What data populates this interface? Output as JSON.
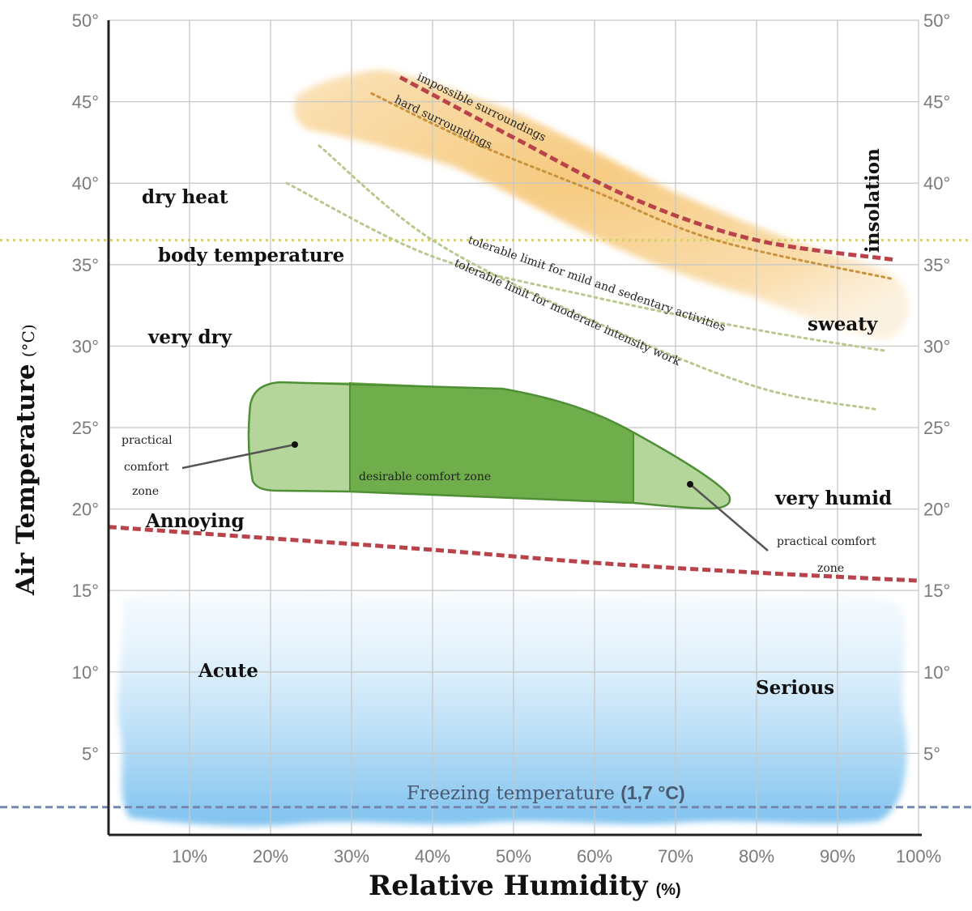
{
  "chart_data": {
    "type": "area",
    "title": "",
    "xlabel": "Relative Humidity",
    "xlabel_unit": "(%)",
    "ylabel": "Air Temperature (°C)",
    "xlim": [
      0,
      100
    ],
    "ylim": [
      0,
      50
    ],
    "x_ticks": [
      10,
      20,
      30,
      40,
      50,
      60,
      70,
      80,
      90,
      100
    ],
    "x_tick_labels": [
      "10%",
      "20%",
      "30%",
      "40%",
      "50%",
      "60%",
      "70%",
      "80%",
      "90%",
      "100%"
    ],
    "y_ticks": [
      5,
      10,
      15,
      20,
      25,
      30,
      35,
      40,
      45,
      50
    ],
    "y_tick_labels": [
      "5°",
      "10°",
      "15°",
      "20°",
      "25°",
      "30°",
      "35°",
      "40°",
      "45°",
      "50°"
    ],
    "grid": true,
    "reference_lines": [
      {
        "name": "body temperature",
        "y": 36.5,
        "color": "#d8cf6a",
        "style": "dotted"
      },
      {
        "name": "Freezing temperature",
        "label": "Freezing temperature (1,7 °C)",
        "y": 1.7,
        "color": "#7288b0",
        "style": "dashed"
      }
    ],
    "series": [
      {
        "name": "impossible surroundings",
        "color": "#b8434a",
        "style": "dashed",
        "x": [
          36,
          50,
          65,
          80,
          97
        ],
        "y": [
          46.5,
          42.8,
          39.0,
          36.5,
          35.3
        ]
      },
      {
        "name": "hard surroundings",
        "color": "#c9923c",
        "style": "dotted",
        "x": [
          32.5,
          45,
          60,
          75,
          97
        ],
        "y": [
          45.5,
          42.5,
          39.5,
          36.5,
          34.1
        ]
      },
      {
        "name": "tolerable limit for mild and sedentary activities",
        "color": "#b7c98e",
        "style": "dotted",
        "x": [
          22,
          40,
          60,
          80,
          96
        ],
        "y": [
          40.0,
          35.5,
          33.0,
          31.0,
          29.7
        ]
      },
      {
        "name": "tolerable limit for moderate intensity work",
        "color": "#b7c98e",
        "style": "dotted",
        "x": [
          26,
          40,
          60,
          80,
          95
        ],
        "y": [
          42.3,
          36.5,
          31.5,
          27.5,
          26.1
        ]
      },
      {
        "name": "cold discomfort limit",
        "color": "#b8434a",
        "style": "dashed",
        "x": [
          0,
          20,
          40,
          60,
          80,
          100
        ],
        "y": [
          18.9,
          18.2,
          17.5,
          16.7,
          16.1,
          15.6
        ]
      }
    ],
    "regions": [
      {
        "name": "desirable comfort zone",
        "x_range": [
          30,
          65
        ],
        "y_range": [
          21,
          28
        ],
        "color": "#6fae4a"
      },
      {
        "name": "practical comfort zone",
        "x_range": [
          17,
          30
        ],
        "y_range": [
          21,
          28
        ],
        "color": "#b5d69a"
      },
      {
        "name": "practical comfort zone",
        "x_range": [
          65,
          77
        ],
        "y_range": [
          20.5,
          25
        ],
        "color": "#b5d69a"
      },
      {
        "name": "hot zone",
        "color": "#f6c777"
      },
      {
        "name": "cold zone",
        "y_range": [
          1,
          15
        ],
        "color": "#9fd0f0"
      }
    ],
    "annotations": [
      {
        "text": "dry heat",
        "x": 9.5,
        "y": 39.3
      },
      {
        "text": "body temperature",
        "x": 18,
        "y": 35.8
      },
      {
        "text": "very dry",
        "x": 10.5,
        "y": 30.6
      },
      {
        "text": "sweaty",
        "x": 88,
        "y": 31.4
      },
      {
        "text": "insolation",
        "x": 95,
        "y": 39
      },
      {
        "text": "very humid",
        "x": 90,
        "y": 21.3
      },
      {
        "text": "Annoying",
        "x": 11.5,
        "y": 19.1
      },
      {
        "text": "Acute",
        "x": 15,
        "y": 10.1
      },
      {
        "text": "Serious",
        "x": 85,
        "y": 9.1
      },
      {
        "text": "desirable comfort zone",
        "x": 46,
        "y": 22.2
      },
      {
        "text": "practical comfort zone",
        "x": 5,
        "y": 24
      },
      {
        "text": "practical comfort zone",
        "x": 87,
        "y": 18
      }
    ]
  },
  "zones": {
    "dry_heat": "dry heat",
    "body_temperature": "body temperature",
    "very_dry": "very dry",
    "sweaty": "sweaty",
    "insolation": "insolation",
    "very_humid": "very humid",
    "annoying": "Annoying",
    "acute": "Acute",
    "serious": "Serious"
  },
  "comfort": {
    "desirable": "desirable comfort zone",
    "practical_left": [
      "practical",
      "comfort",
      "zone"
    ],
    "practical_right": [
      "practical  comfort",
      "zone"
    ]
  },
  "curve_labels": {
    "impossible": "impossible surroundings",
    "hard": "hard surroundings",
    "mild": "tolerable limit for mild and sedentary activities",
    "moderate": "tolerable limit for moderate intensity work"
  },
  "freezing": {
    "label": "Freezing temperature ",
    "value": "(1,7 °C)"
  },
  "axes": {
    "y_title": "Air Temperature",
    "y_unit": "(°C)",
    "x_title": "Relative Humidity",
    "x_unit": "(%)"
  },
  "colors": {
    "grid": "#c8c8c8",
    "axis": "#222222",
    "hot": "#f6c777",
    "cold": "#9fd0f0",
    "comfort_dark": "#6fae4a",
    "comfort_light": "#b5d69a",
    "comfort_border": "#4f8f35"
  }
}
